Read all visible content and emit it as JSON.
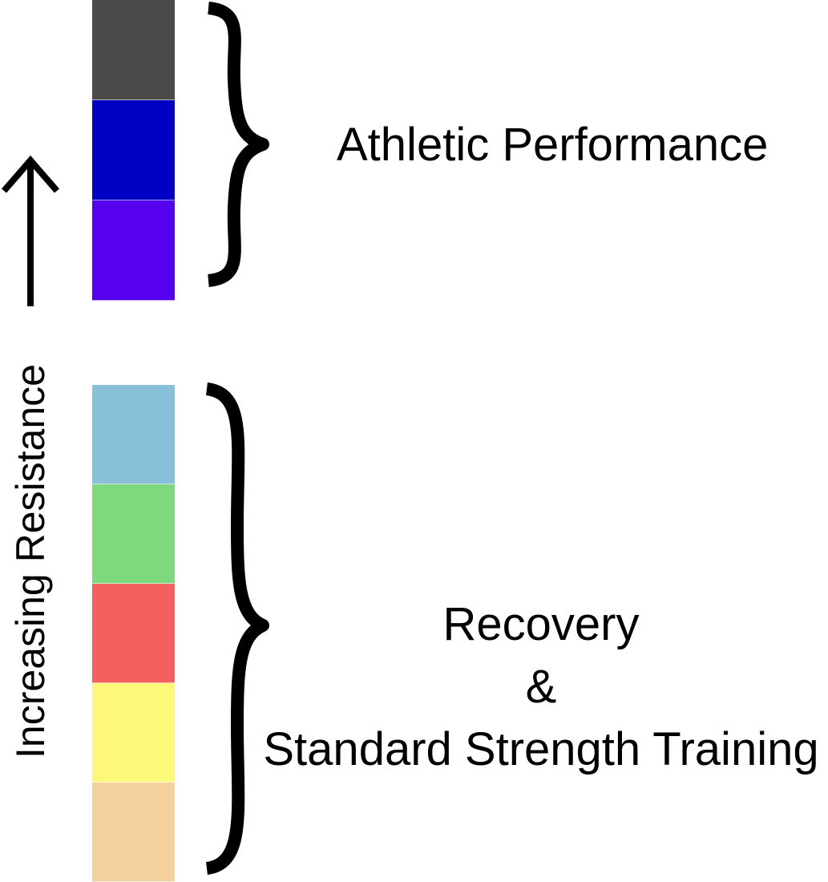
{
  "axis": {
    "label": "Increasing Resistance",
    "direction": "up"
  },
  "groups": [
    {
      "label_lines": [
        "Athletic Performance"
      ],
      "colors": [
        "#4a4a4a",
        "#0000c4",
        "#5500ee"
      ]
    },
    {
      "label_lines": [
        "Recovery",
        "&",
        "Standard Strength Training"
      ],
      "colors": [
        "#87c0d8",
        "#7dd87e",
        "#f46060",
        "#fef878",
        "#f4d09e"
      ]
    }
  ]
}
